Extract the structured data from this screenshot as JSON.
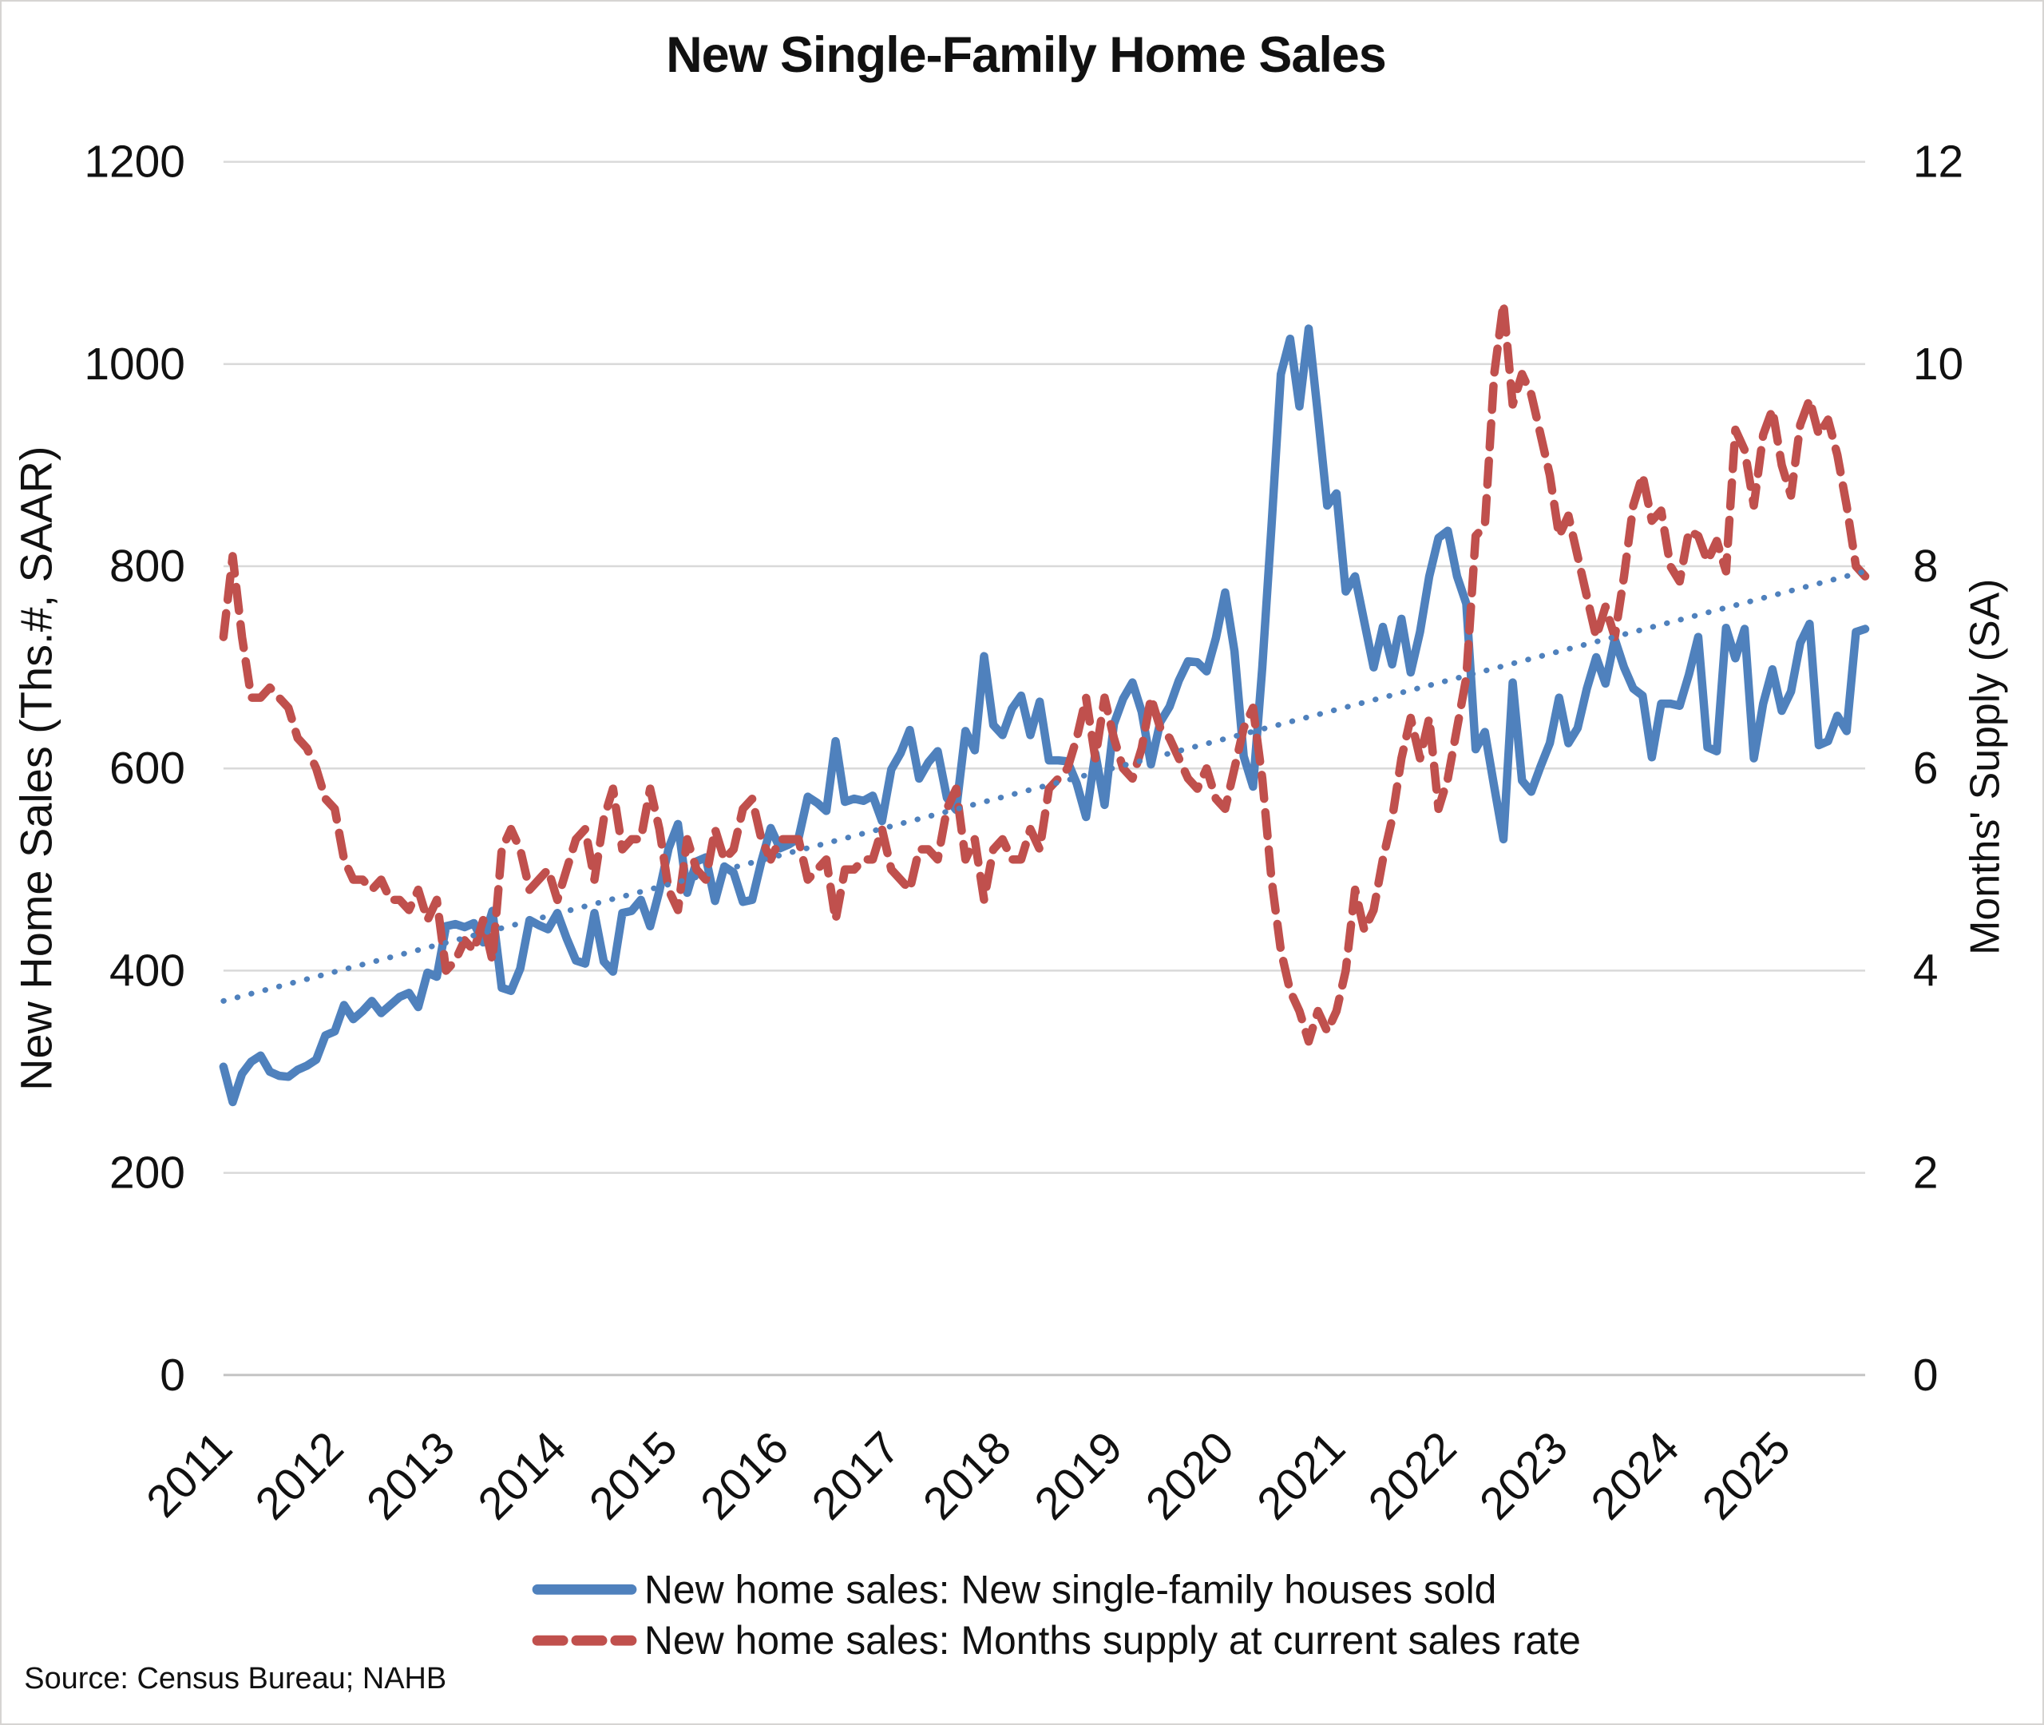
{
  "title": "New Single-Family Home Sales",
  "source": "Source: Census Bureau; NAHB",
  "left_axis": {
    "title": "New Home Sales (Ths.#, SAAR)",
    "min": 0,
    "max": 1200,
    "ticks": [
      0,
      200,
      400,
      600,
      800,
      1000,
      1200
    ]
  },
  "right_axis": {
    "title": "Months' Supply (SA)",
    "min": 0,
    "max": 12,
    "ticks": [
      0,
      2,
      4,
      6,
      8,
      10,
      12
    ]
  },
  "x_axis": {
    "year_labels": [
      "2011",
      "2012",
      "2013",
      "2014",
      "2015",
      "2016",
      "2017",
      "2018",
      "2019",
      "2020",
      "2021",
      "2022",
      "2023",
      "2024",
      "2025"
    ]
  },
  "legend": {
    "items": [
      {
        "label": "New home sales: New single-family houses sold",
        "color": "#4F81BD",
        "style": "solid"
      },
      {
        "label": "New home sales: Months supply at current sales rate",
        "color": "#C0504D",
        "style": "dashed"
      }
    ]
  },
  "colors": {
    "sales_line": "#4F81BD",
    "supply_line": "#C0504D",
    "trend_line": "#4F81BD",
    "gridline": "#D9D9D9",
    "axis_line": "#C4C4C4",
    "text": "#111111",
    "background": "#FFFFFF"
  },
  "chart_data": {
    "type": "line",
    "title": "New Single-Family Home Sales",
    "frequency": "monthly",
    "x_start": "2011-01",
    "x_end": "2025-10",
    "xlabel": "",
    "ylabel_left": "New Home Sales (Ths.#, SAAR)",
    "ylabel_right": "Months' Supply (SA)",
    "ylim_left": [
      0,
      1200
    ],
    "ylim_right": [
      0,
      12
    ],
    "grid": true,
    "legend_position": "bottom",
    "series": [
      {
        "name": "New home sales: New single-family houses sold",
        "axis": "left",
        "style": "solid",
        "color": "#4F81BD",
        "values": [
          305,
          270,
          298,
          310,
          316,
          300,
          296,
          295,
          302,
          306,
          312,
          336,
          340,
          366,
          352,
          360,
          370,
          358,
          366,
          374,
          378,
          364,
          398,
          394,
          444,
          446,
          443,
          447,
          428,
          459,
          383,
          380,
          402,
          450,
          445,
          441,
          457,
          432,
          410,
          407,
          457,
          409,
          399,
          457,
          459,
          470,
          444,
          479,
          521,
          545,
          477,
          508,
          512,
          469,
          503,
          497,
          468,
          470,
          508,
          541,
          521,
          525,
          531,
          572,
          566,
          558,
          627,
          567,
          570,
          568,
          573,
          548,
          599,
          615,
          638,
          590,
          606,
          617,
          571,
          559,
          637,
          618,
          711,
          643,
          633,
          659,
          672,
          633,
          666,
          608,
          608,
          607,
          585,
          552,
          615,
          564,
          644,
          669,
          685,
          656,
          604,
          646,
          661,
          687,
          706,
          705,
          696,
          729,
          774,
          716,
          612,
          582,
          700,
          840,
          990,
          1025,
          958,
          1035,
          950,
          860,
          872,
          775,
          790,
          745,
          700,
          740,
          703,
          748,
          695,
          735,
          790,
          828,
          835,
          790,
          763,
          619,
          636,
          582,
          530,
          685,
          588,
          577,
          602,
          625,
          670,
          625,
          640,
          679,
          710,
          684,
          728,
          700,
          679,
          672,
          611,
          664,
          664,
          662,
          693,
          730,
          621,
          617,
          739,
          709,
          738,
          610,
          664,
          698,
          657,
          676,
          724,
          743,
          623,
          627,
          652,
          637,
          735,
          738
        ]
      },
      {
        "name": "New home sales: Months supply at current sales rate",
        "axis": "right",
        "style": "dashed",
        "color": "#C0504D",
        "values": [
          7.3,
          8.1,
          7.3,
          6.7,
          6.7,
          6.8,
          6.7,
          6.6,
          6.3,
          6.2,
          6.0,
          5.7,
          5.6,
          5.1,
          4.9,
          4.9,
          4.8,
          4.9,
          4.7,
          4.7,
          4.6,
          4.8,
          4.5,
          4.7,
          4.0,
          4.1,
          4.3,
          4.2,
          4.5,
          4.1,
          5.2,
          5.4,
          5.2,
          4.8,
          4.9,
          5.0,
          4.7,
          5.0,
          5.3,
          5.4,
          4.9,
          5.5,
          5.8,
          5.2,
          5.3,
          5.3,
          5.8,
          5.4,
          4.8,
          4.6,
          5.3,
          5.0,
          4.9,
          5.4,
          5.1,
          5.2,
          5.6,
          5.7,
          5.3,
          5.1,
          5.3,
          5.3,
          5.3,
          4.9,
          5.0,
          5.1,
          4.5,
          5.0,
          5.0,
          5.1,
          5.1,
          5.4,
          5.0,
          4.9,
          4.8,
          5.2,
          5.2,
          5.1,
          5.6,
          5.8,
          5.1,
          5.3,
          4.7,
          5.2,
          5.3,
          5.1,
          5.1,
          5.4,
          5.2,
          5.8,
          5.9,
          6.0,
          6.3,
          6.7,
          6.1,
          6.7,
          6.3,
          6.0,
          5.9,
          6.2,
          6.7,
          6.4,
          6.3,
          6.1,
          5.9,
          5.8,
          6.0,
          5.7,
          5.6,
          6.0,
          6.4,
          6.6,
          5.9,
          4.9,
          4.2,
          3.8,
          3.6,
          3.3,
          3.6,
          3.4,
          3.6,
          4.0,
          4.8,
          4.4,
          4.6,
          5.1,
          5.5,
          6.1,
          6.5,
          6.1,
          6.5,
          5.6,
          5.9,
          6.4,
          6.9,
          8.3,
          8.4,
          9.9,
          10.6,
          9.6,
          9.9,
          9.7,
          9.3,
          8.9,
          8.3,
          8.5,
          8.1,
          7.7,
          7.3,
          7.6,
          7.3,
          7.9,
          8.6,
          8.9,
          8.45,
          8.55,
          8.0,
          7.85,
          8.35,
          8.3,
          8.05,
          8.25,
          7.95,
          9.35,
          9.15,
          8.6,
          9.3,
          9.55,
          9.0,
          8.7,
          9.4,
          9.65,
          9.3,
          9.45,
          9.1,
          8.6,
          8.0,
          7.9
        ]
      },
      {
        "name": "Linear trend of new single-family houses sold",
        "axis": "left",
        "style": "dotted",
        "color": "#4F81BD",
        "trend": {
          "start_value": 370,
          "end_value": 795
        }
      }
    ]
  }
}
